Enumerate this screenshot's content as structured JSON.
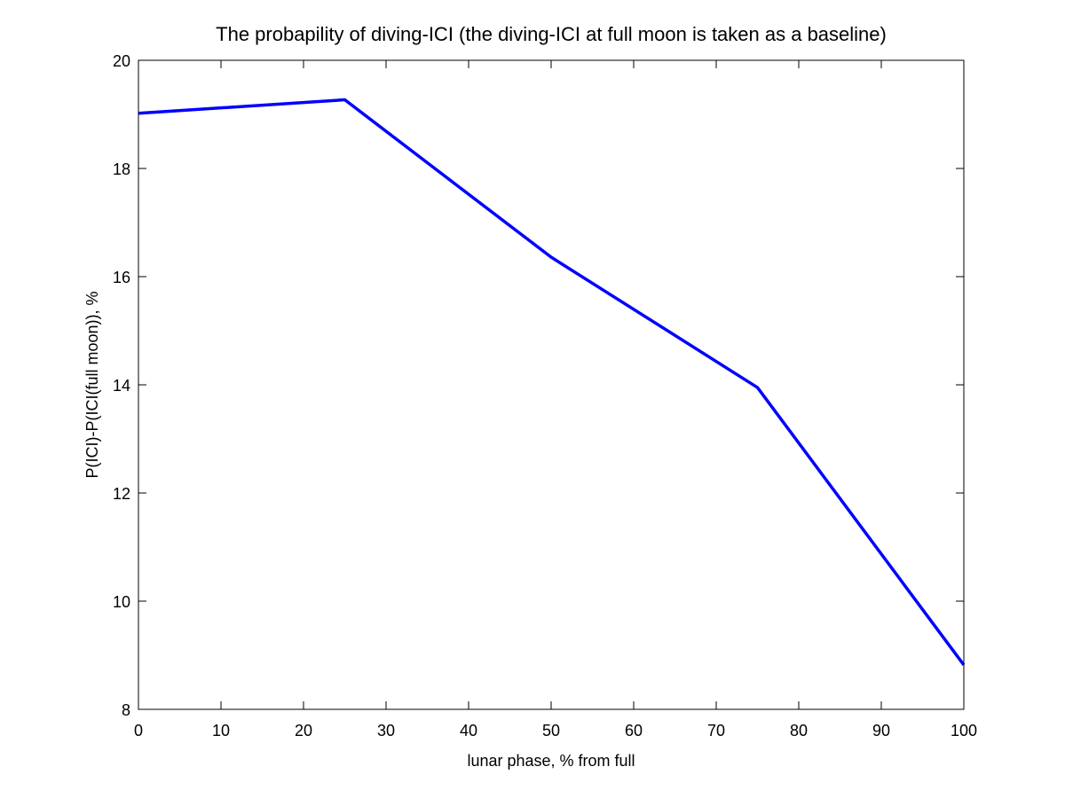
{
  "chart_data": {
    "type": "line",
    "title": "The probapility of diving-ICI (the diving-ICI at full moon is taken as a baseline)",
    "xlabel": "lunar phase, % from full",
    "ylabel": "P(ICI)-P(ICI(full moon)), %",
    "xlim": [
      0,
      100
    ],
    "ylim": [
      8,
      20
    ],
    "xticks": [
      0,
      10,
      20,
      30,
      40,
      50,
      60,
      70,
      80,
      90,
      100
    ],
    "yticks": [
      8,
      10,
      12,
      14,
      16,
      18,
      20
    ],
    "grid": false,
    "series": [
      {
        "name": "P(ICI)",
        "color": "#0000ff",
        "x": [
          0,
          25,
          50,
          75,
          100
        ],
        "y": [
          19.02,
          19.27,
          16.36,
          13.95,
          8.82
        ]
      }
    ]
  }
}
